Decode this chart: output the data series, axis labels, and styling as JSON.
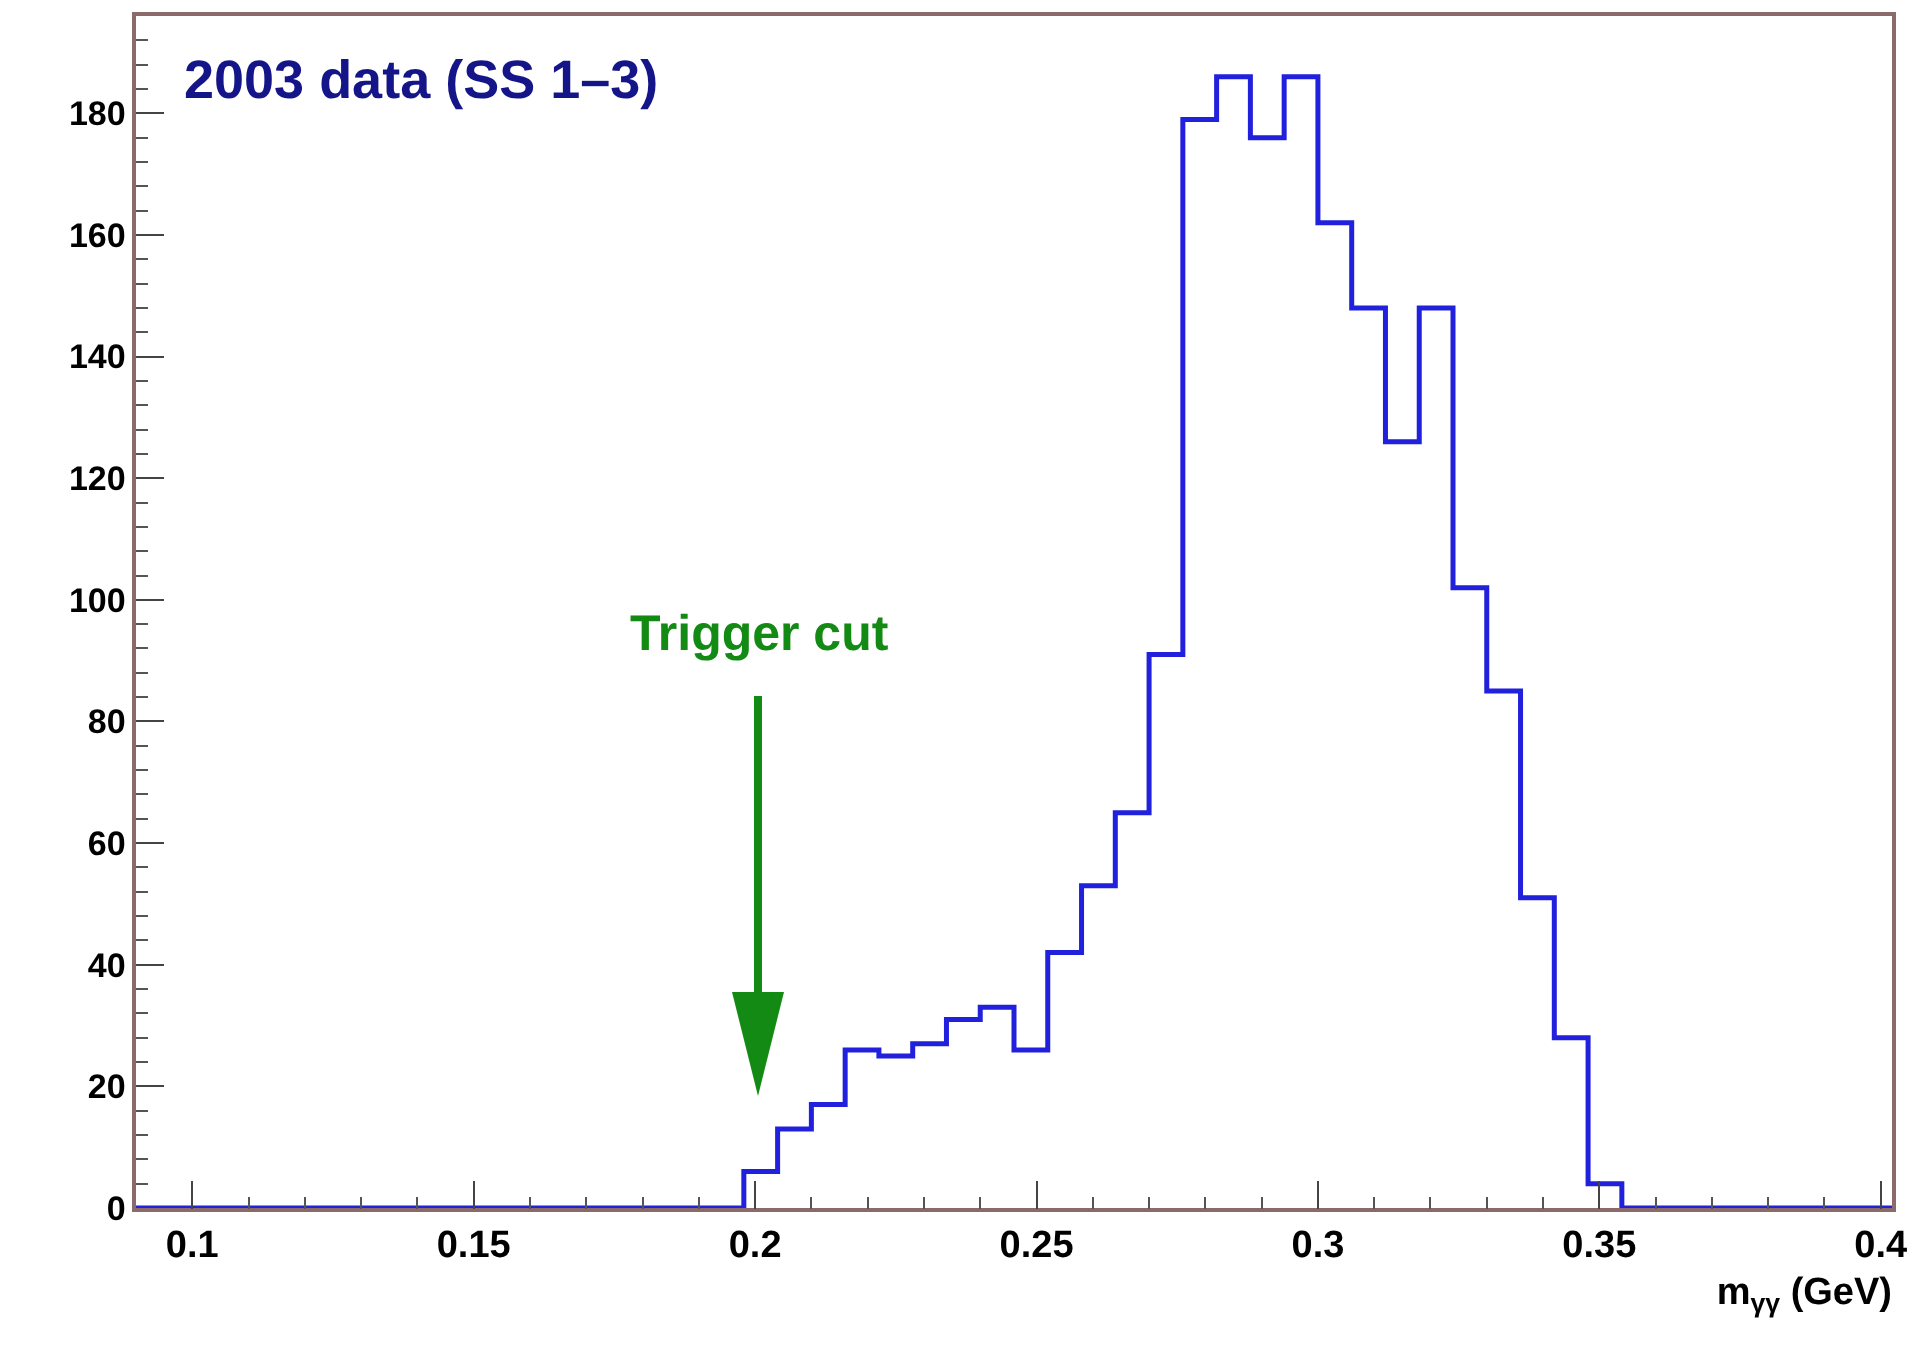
{
  "chart_data": {
    "type": "histogram",
    "title": "2003 data (SS 1–3)",
    "xlabel": "m$_{γγ}$ (GeV)",
    "bins": [
      0.09,
      0.096,
      0.102,
      0.108,
      0.114,
      0.12,
      0.126,
      0.132,
      0.138,
      0.144,
      0.15,
      0.156,
      0.162,
      0.168,
      0.174,
      0.18,
      0.186,
      0.192,
      0.198,
      0.204,
      0.21,
      0.216,
      0.222,
      0.228,
      0.234,
      0.24,
      0.246,
      0.252,
      0.258,
      0.264,
      0.27,
      0.276,
      0.282,
      0.288,
      0.294,
      0.3,
      0.306,
      0.312,
      0.318,
      0.324,
      0.33,
      0.336,
      0.342,
      0.348,
      0.354,
      0.36,
      0.366,
      0.372,
      0.378,
      0.384,
      0.39,
      0.396,
      0.402
    ],
    "values": [
      0,
      0,
      0,
      0,
      0,
      0,
      0,
      0,
      0,
      0,
      0,
      0,
      0,
      0,
      0,
      0,
      0,
      0,
      6,
      13,
      17,
      26,
      25,
      27,
      31,
      33,
      26,
      42,
      53,
      65,
      91,
      179,
      186,
      176,
      186,
      162,
      148,
      126,
      148,
      102,
      85,
      51,
      28,
      4,
      0,
      0,
      0,
      0,
      0,
      0,
      0,
      0
    ],
    "color": "#2020dd",
    "xlim": [
      0.09,
      0.402
    ],
    "xticks": [
      0.1,
      0.15,
      0.2,
      0.25,
      0.3,
      0.35,
      0.4
    ],
    "ylim": [
      0,
      196
    ],
    "yticks": [
      0,
      20,
      40,
      60,
      80,
      100,
      120,
      140,
      160,
      180
    ],
    "grid": false,
    "annotations": [
      "Trigger cut"
    ]
  }
}
